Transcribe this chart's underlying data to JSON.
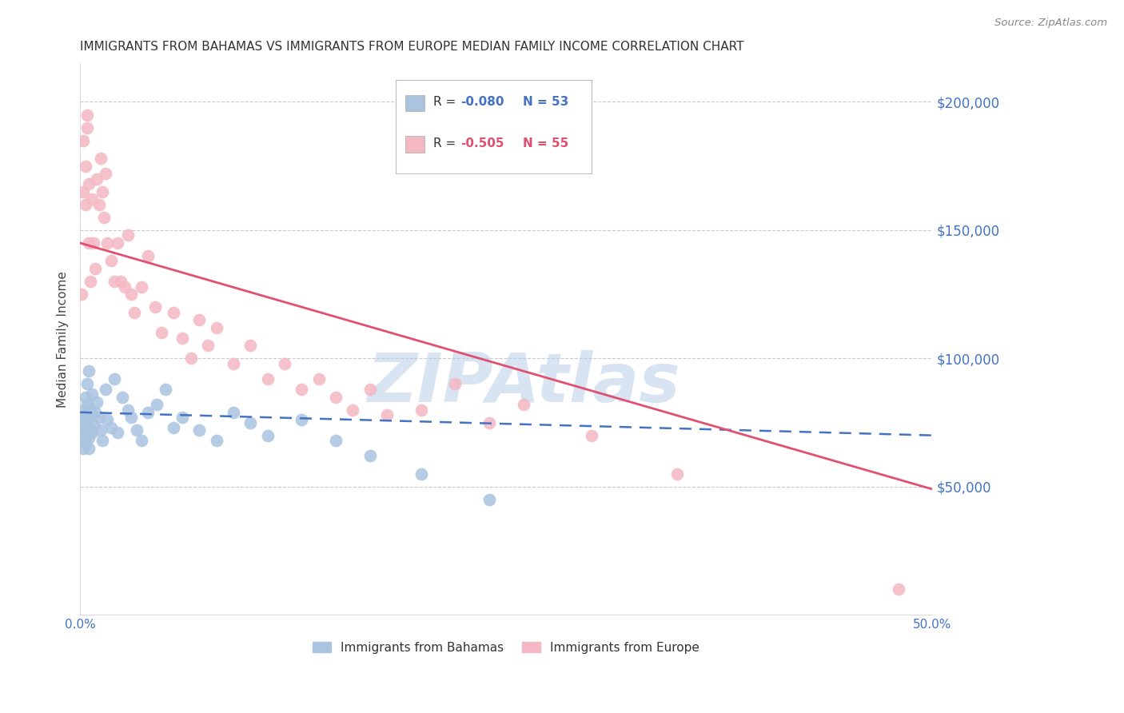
{
  "title": "IMMIGRANTS FROM BAHAMAS VS IMMIGRANTS FROM EUROPE MEDIAN FAMILY INCOME CORRELATION CHART",
  "source": "Source: ZipAtlas.com",
  "ylabel": "Median Family Income",
  "xlim": [
    0.0,
    0.5
  ],
  "ylim": [
    0,
    215000
  ],
  "xtick_labels": [
    "0.0%",
    "",
    "",
    "",
    "",
    "50.0%"
  ],
  "xtick_values": [
    0.0,
    0.1,
    0.2,
    0.3,
    0.4,
    0.5
  ],
  "ytick_values": [
    0,
    50000,
    100000,
    150000,
    200000
  ],
  "ytick_labels": [
    "",
    "$50,000",
    "$100,000",
    "$150,000",
    "$200,000"
  ],
  "watermark": "ZIPAtlas",
  "series": [
    {
      "name": "Immigrants from Bahamas",
      "R": -0.08,
      "N": 53,
      "color": "#aac4e0",
      "line_color": "#4472c4",
      "line_style": "dashed",
      "x": [
        0.001,
        0.001,
        0.002,
        0.002,
        0.002,
        0.003,
        0.003,
        0.003,
        0.003,
        0.003,
        0.004,
        0.004,
        0.004,
        0.004,
        0.005,
        0.005,
        0.005,
        0.005,
        0.006,
        0.006,
        0.007,
        0.007,
        0.008,
        0.009,
        0.01,
        0.011,
        0.012,
        0.013,
        0.015,
        0.016,
        0.018,
        0.02,
        0.022,
        0.025,
        0.028,
        0.03,
        0.033,
        0.036,
        0.04,
        0.045,
        0.05,
        0.055,
        0.06,
        0.07,
        0.08,
        0.09,
        0.1,
        0.11,
        0.13,
        0.15,
        0.17,
        0.2,
        0.24
      ],
      "y": [
        75000,
        68000,
        72000,
        80000,
        65000,
        78000,
        73000,
        85000,
        71000,
        67000,
        76000,
        90000,
        74000,
        82000,
        77000,
        69000,
        95000,
        65000,
        80000,
        72000,
        86000,
        71000,
        74000,
        79000,
        83000,
        77000,
        72000,
        68000,
        88000,
        76000,
        73000,
        92000,
        71000,
        85000,
        80000,
        77000,
        72000,
        68000,
        79000,
        82000,
        88000,
        73000,
        77000,
        72000,
        68000,
        79000,
        75000,
        70000,
        76000,
        68000,
        62000,
        55000,
        45000
      ],
      "trend_x": [
        0.0,
        0.5
      ],
      "trend_y": [
        79000,
        70000
      ]
    },
    {
      "name": "Immigrants from Europe",
      "R": -0.505,
      "N": 55,
      "color": "#f4b8c4",
      "line_color": "#e05070",
      "line_style": "solid",
      "x": [
        0.001,
        0.002,
        0.002,
        0.003,
        0.003,
        0.004,
        0.004,
        0.005,
        0.005,
        0.006,
        0.007,
        0.008,
        0.009,
        0.01,
        0.011,
        0.012,
        0.013,
        0.014,
        0.015,
        0.016,
        0.018,
        0.02,
        0.022,
        0.024,
        0.026,
        0.028,
        0.03,
        0.032,
        0.036,
        0.04,
        0.044,
        0.048,
        0.055,
        0.06,
        0.065,
        0.07,
        0.075,
        0.08,
        0.09,
        0.1,
        0.11,
        0.12,
        0.13,
        0.14,
        0.15,
        0.16,
        0.17,
        0.18,
        0.2,
        0.22,
        0.24,
        0.26,
        0.3,
        0.35,
        0.48
      ],
      "y": [
        125000,
        165000,
        185000,
        175000,
        160000,
        195000,
        190000,
        145000,
        168000,
        130000,
        162000,
        145000,
        135000,
        170000,
        160000,
        178000,
        165000,
        155000,
        172000,
        145000,
        138000,
        130000,
        145000,
        130000,
        128000,
        148000,
        125000,
        118000,
        128000,
        140000,
        120000,
        110000,
        118000,
        108000,
        100000,
        115000,
        105000,
        112000,
        98000,
        105000,
        92000,
        98000,
        88000,
        92000,
        85000,
        80000,
        88000,
        78000,
        80000,
        90000,
        75000,
        82000,
        70000,
        55000,
        10000
      ],
      "trend_x": [
        0.0,
        0.5
      ],
      "trend_y": [
        145000,
        49000
      ]
    }
  ],
  "title_fontsize": 11,
  "axis_label_color": "#4472c4",
  "grid_color": "#c8c8d0",
  "background_color": "#ffffff"
}
